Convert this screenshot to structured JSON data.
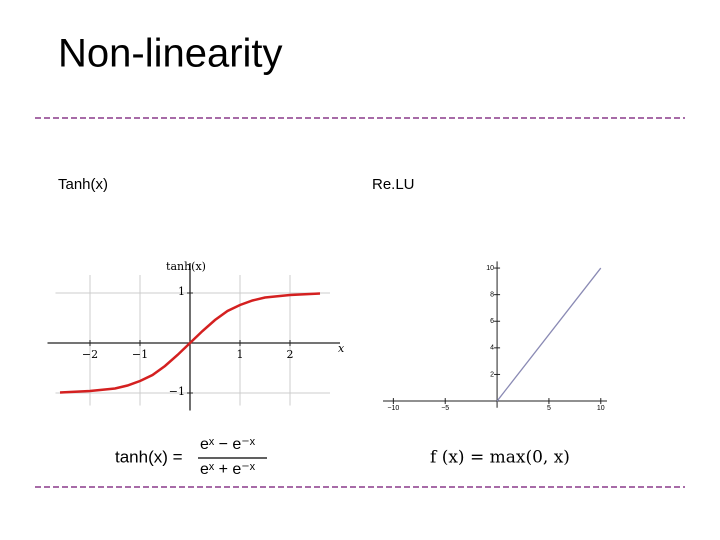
{
  "header": {
    "title": "Non-linearity"
  },
  "chart_data": [
    {
      "type": "line",
      "title": "Tanh(x)",
      "xlabel": "x",
      "ylabel": "tanh(x)",
      "x": [
        -2.6,
        -2,
        -1.5,
        -1.25,
        -1,
        -0.75,
        -0.5,
        -0.25,
        0,
        0.25,
        0.5,
        0.75,
        1,
        1.25,
        1.5,
        2,
        2.6
      ],
      "values": [
        -0.99,
        -0.96,
        -0.91,
        -0.85,
        -0.76,
        -0.64,
        -0.46,
        -0.24,
        0,
        0.24,
        0.46,
        0.64,
        0.76,
        0.85,
        0.91,
        0.96,
        0.99
      ],
      "color": "#d42020",
      "grid": true,
      "xlim": [
        -2.85,
        3
      ],
      "ylim": [
        -1.35,
        1.6
      ],
      "xticks": [
        {
          "value": -2,
          "label": "−2"
        },
        {
          "value": -1,
          "label": "−1"
        },
        1,
        2
      ],
      "yticks": [
        {
          "value": -1,
          "label": "−1"
        },
        1
      ],
      "formula": {
        "lhs": "tanh(x) =",
        "numerator": "eˣ − e⁻ˣ",
        "denominator": "eˣ + e⁻ˣ"
      }
    },
    {
      "type": "line",
      "title": "Re.LU",
      "x": [
        0,
        10
      ],
      "values": [
        0,
        10
      ],
      "color": "#8a8ab4",
      "grid": false,
      "xlim": [
        -11,
        10.6
      ],
      "ylim": [
        -0.5,
        10.5
      ],
      "xticks": [
        {
          "value": -10,
          "label": "−10"
        },
        {
          "value": -5,
          "label": "−5"
        },
        5,
        10
      ],
      "yticks": [
        2,
        4,
        6,
        8,
        10
      ],
      "formula": {
        "lhs": "f (x) = max(0, x)"
      }
    }
  ]
}
